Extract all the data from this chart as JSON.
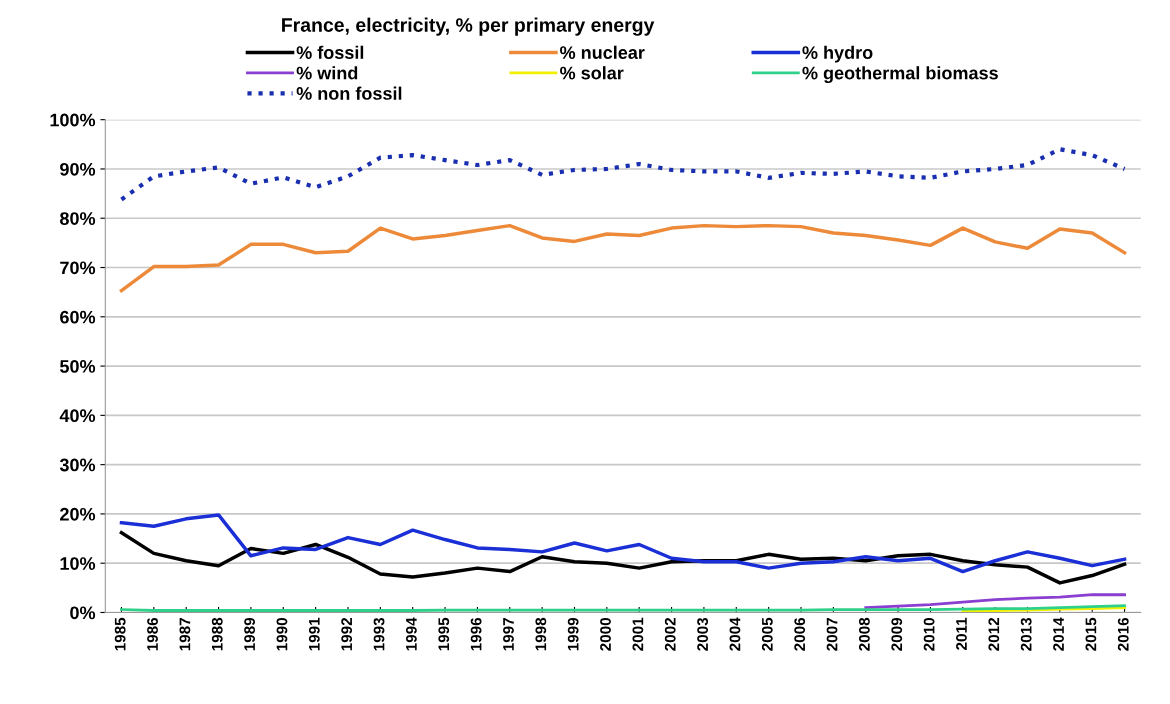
{
  "chart_data": {
    "type": "line",
    "title": "France, electricity, % per primary energy",
    "categories": [
      "1985",
      "1986",
      "1987",
      "1988",
      "1989",
      "1990",
      "1991",
      "1992",
      "1993",
      "1994",
      "1995",
      "1996",
      "1997",
      "1998",
      "1999",
      "2000",
      "2001",
      "2002",
      "2003",
      "2004",
      "2005",
      "2006",
      "2007",
      "2008",
      "2009",
      "2010",
      "2011",
      "2012",
      "2013",
      "2014",
      "2015",
      "2016"
    ],
    "series": [
      {
        "name": "% fossil",
        "color": "#000000",
        "values": [
          16.2,
          12,
          10.5,
          9.5,
          13,
          12,
          13.8,
          11.2,
          7.8,
          7.2,
          8,
          9,
          8.3,
          11.3,
          10.3,
          10,
          9,
          10.3,
          10.5,
          10.5,
          11.8,
          10.8,
          11,
          10.5,
          11.5,
          11.8,
          10.5,
          9.7,
          9.2,
          6,
          7.5,
          9.8
        ]
      },
      {
        "name": "% wind",
        "color": "#8a3fd0",
        "values": [
          null,
          null,
          null,
          null,
          null,
          null,
          null,
          null,
          null,
          null,
          null,
          null,
          null,
          null,
          null,
          null,
          null,
          null,
          null,
          null,
          null,
          null,
          null,
          1,
          1.3,
          1.6,
          2.1,
          2.6,
          2.9,
          3.1,
          3.6,
          3.6
        ]
      },
      {
        "name": "% non fossil",
        "color": "#1a2fb0",
        "line_style": "dotted",
        "values": [
          83.8,
          88.5,
          89.5,
          90.3,
          87,
          88.3,
          86.3,
          88.5,
          92.3,
          92.8,
          91.8,
          90.8,
          91.8,
          88.8,
          89.8,
          90,
          91,
          89.8,
          89.5,
          89.5,
          88.2,
          89.2,
          89,
          89.5,
          88.5,
          88.2,
          89.5,
          90,
          90.8,
          94,
          92.8,
          90
        ]
      },
      {
        "name": "% nuclear",
        "color": "#ed8a3a",
        "values": [
          65.3,
          70.2,
          70.2,
          70.5,
          74.7,
          74.7,
          73,
          73.3,
          78,
          75.8,
          76.5,
          77.5,
          78.5,
          76,
          75.3,
          76.8,
          76.5,
          78,
          78.5,
          78.3,
          78.5,
          78.3,
          77,
          76.5,
          75.6,
          74.5,
          78,
          75.2,
          73.9,
          77.8,
          77,
          73
        ]
      },
      {
        "name": "% solar",
        "color": "#f0f000",
        "values": [
          null,
          null,
          null,
          null,
          null,
          null,
          null,
          null,
          null,
          null,
          null,
          null,
          null,
          null,
          null,
          null,
          null,
          null,
          null,
          null,
          null,
          null,
          null,
          null,
          null,
          null,
          0.3,
          0.4,
          0.5,
          0.7,
          0.8,
          1.0
        ]
      },
      {
        "name": "% hydro",
        "color": "#1a2fd6",
        "values": [
          18.2,
          17.5,
          19,
          19.8,
          11.5,
          13.1,
          12.8,
          15.2,
          13.8,
          16.7,
          14.8,
          13.1,
          12.8,
          12.3,
          14.1,
          12.5,
          13.8,
          11,
          10.3,
          10.3,
          9,
          10,
          10.3,
          11.3,
          10.5,
          11,
          8.3,
          10.5,
          12.3,
          11,
          9.5,
          10.8
        ]
      },
      {
        "name": "% geothermal biomass",
        "color": "#2ed08a",
        "values": [
          0.6,
          0.4,
          0.4,
          0.4,
          0.4,
          0.4,
          0.4,
          0.4,
          0.4,
          0.4,
          0.5,
          0.5,
          0.5,
          0.5,
          0.5,
          0.5,
          0.5,
          0.5,
          0.5,
          0.5,
          0.5,
          0.5,
          0.6,
          0.6,
          0.6,
          0.6,
          0.7,
          0.8,
          0.8,
          1.0,
          1.2,
          1.4
        ]
      }
    ],
    "ylim": [
      0,
      100
    ],
    "yticks": [
      {
        "value": 0,
        "label": "0%"
      },
      {
        "value": 10,
        "label": "10%"
      },
      {
        "value": 20,
        "label": "20%"
      },
      {
        "value": 30,
        "label": "30%"
      },
      {
        "value": 40,
        "label": "40%"
      },
      {
        "value": 50,
        "label": "50%"
      },
      {
        "value": 60,
        "label": "60%"
      },
      {
        "value": 70,
        "label": "70%"
      },
      {
        "value": 80,
        "label": "80%"
      },
      {
        "value": 90,
        "label": "90%"
      },
      {
        "value": 100,
        "label": "100%"
      }
    ],
    "grid": "y",
    "legend": "top",
    "marker": "none",
    "line_style": "solid"
  }
}
